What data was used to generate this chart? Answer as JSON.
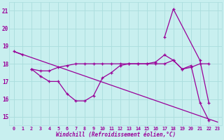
{
  "xlabel": "Windchill (Refroidissement éolien,°C)",
  "bg_color": "#c8efef",
  "grid_color": "#aadddd",
  "line_color": "#990099",
  "xlim": [
    -0.5,
    23.5
  ],
  "ylim": [
    14.5,
    21.5
  ],
  "xticks": [
    0,
    1,
    2,
    3,
    4,
    5,
    6,
    7,
    8,
    9,
    10,
    11,
    12,
    13,
    14,
    15,
    16,
    17,
    18,
    19,
    20,
    21,
    22,
    23
  ],
  "yticks": [
    15,
    16,
    17,
    18,
    19,
    20,
    21
  ],
  "series": [
    {
      "x": [
        0,
        1
      ],
      "y": [
        18.7,
        18.5
      ]
    },
    {
      "x": [
        2,
        3,
        4,
        5,
        6,
        7,
        8,
        9,
        10,
        11,
        12,
        13,
        14,
        15,
        16,
        17,
        18,
        19,
        20,
        21,
        22
      ],
      "y": [
        17.7,
        17.3,
        17.0,
        17.0,
        16.3,
        15.9,
        15.9,
        16.2,
        17.2,
        17.5,
        17.9,
        18.0,
        18.0,
        18.0,
        18.1,
        18.5,
        18.2,
        17.7,
        17.9,
        15.8,
        14.8
      ]
    },
    {
      "x": [
        2,
        3,
        4,
        5,
        6,
        7,
        8,
        9,
        10,
        11,
        12,
        13,
        14,
        15,
        16,
        17,
        18,
        19,
        20,
        21,
        22
      ],
      "y": [
        17.7,
        17.6,
        17.6,
        17.8,
        17.9,
        18.0,
        18.0,
        18.0,
        18.0,
        18.0,
        18.0,
        18.0,
        18.0,
        18.0,
        18.0,
        18.0,
        18.2,
        17.7,
        17.8,
        18.0,
        18.0
      ]
    },
    {
      "x": [
        0,
        23
      ],
      "y": [
        18.7,
        14.7
      ]
    },
    {
      "x": [
        17,
        18,
        21,
        22
      ],
      "y": [
        19.5,
        21.1,
        18.2,
        15.8
      ]
    }
  ]
}
